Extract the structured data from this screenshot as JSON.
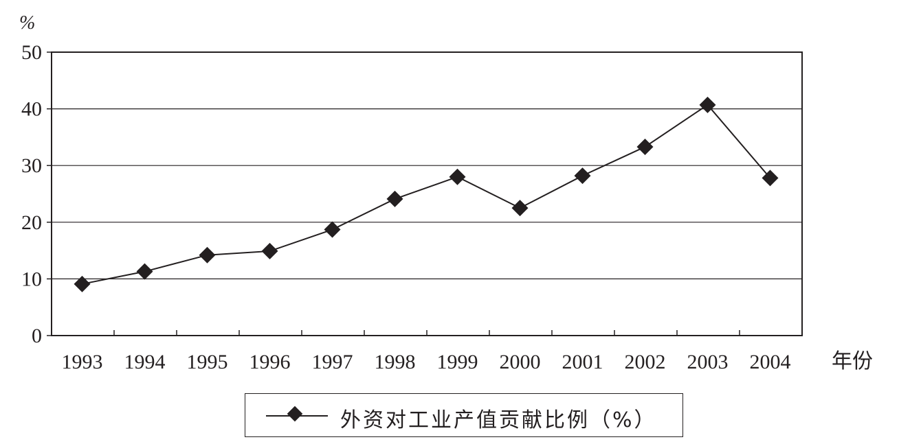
{
  "chart_data": {
    "type": "line",
    "y_unit_label": "%",
    "x_unit_label": "年份",
    "categories": [
      "1993",
      "1994",
      "1995",
      "1996",
      "1997",
      "1998",
      "1999",
      "2000",
      "2001",
      "2002",
      "2003",
      "2004"
    ],
    "series": [
      {
        "name": "外资对工业产值贡献比例（%）",
        "values": [
          9.1,
          11.3,
          14.2,
          14.9,
          18.7,
          24.1,
          28.0,
          22.5,
          28.2,
          33.3,
          40.7,
          27.8
        ],
        "marker": "diamond",
        "color": "#231f20"
      }
    ],
    "ylim": [
      0,
      50
    ],
    "yticks": [
      0,
      10,
      20,
      30,
      40,
      50
    ],
    "grid": true,
    "legend_position": "bottom-center"
  },
  "legend": {
    "label": "外资对工业产值贡献比例（%）"
  }
}
